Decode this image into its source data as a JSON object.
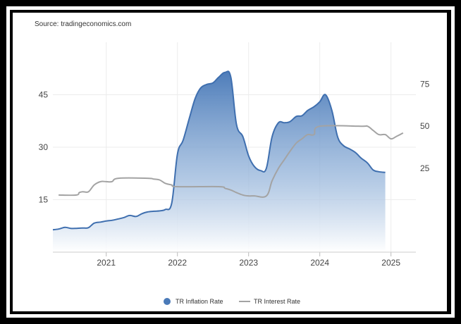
{
  "source_text": "Source: tradingeconomics.com",
  "chart_data": {
    "type": "area",
    "x_ticks": [
      "2021",
      "2022",
      "2023",
      "2024",
      "2025"
    ],
    "xlim": [
      2020.25,
      2025.35
    ],
    "y_left": {
      "ticks": [
        "15",
        "30",
        "45"
      ],
      "tick_values": [
        15,
        30,
        45
      ],
      "ylim": [
        0,
        60
      ]
    },
    "y_right": {
      "ticks": [
        "25",
        "50",
        "75"
      ],
      "tick_values": [
        25,
        50,
        75
      ],
      "ylim": [
        -25,
        100
      ]
    },
    "grid": true,
    "legend_position": "bottom-center",
    "series": [
      {
        "name": "TR Inflation Rate",
        "axis": "left",
        "style": "area",
        "color": "#4a7ab8",
        "points": [
          [
            2020.25,
            6.4
          ],
          [
            2020.33,
            6.6
          ],
          [
            2020.42,
            7.1
          ],
          [
            2020.5,
            6.8
          ],
          [
            2020.58,
            6.8
          ],
          [
            2020.67,
            6.9
          ],
          [
            2020.75,
            7.0
          ],
          [
            2020.83,
            8.3
          ],
          [
            2020.92,
            8.6
          ],
          [
            2021.0,
            8.9
          ],
          [
            2021.08,
            9.1
          ],
          [
            2021.17,
            9.5
          ],
          [
            2021.25,
            9.9
          ],
          [
            2021.33,
            10.5
          ],
          [
            2021.42,
            10.2
          ],
          [
            2021.5,
            11.0
          ],
          [
            2021.58,
            11.5
          ],
          [
            2021.67,
            11.7
          ],
          [
            2021.75,
            11.8
          ],
          [
            2021.83,
            12.2
          ],
          [
            2021.92,
            14.0
          ],
          [
            2022.0,
            28.0
          ],
          [
            2022.08,
            32.0
          ],
          [
            2022.17,
            38.5
          ],
          [
            2022.25,
            44.0
          ],
          [
            2022.33,
            47.0
          ],
          [
            2022.42,
            48.0
          ],
          [
            2022.5,
            48.4
          ],
          [
            2022.58,
            50.0
          ],
          [
            2022.67,
            51.4
          ],
          [
            2022.75,
            50.0
          ],
          [
            2022.83,
            36.5
          ],
          [
            2022.92,
            33.0
          ],
          [
            2023.0,
            27.5
          ],
          [
            2023.08,
            24.5
          ],
          [
            2023.17,
            23.3
          ],
          [
            2023.25,
            24.0
          ],
          [
            2023.33,
            33.0
          ],
          [
            2023.42,
            37.0
          ],
          [
            2023.5,
            37.0
          ],
          [
            2023.58,
            37.3
          ],
          [
            2023.67,
            38.8
          ],
          [
            2023.75,
            39.0
          ],
          [
            2023.83,
            40.5
          ],
          [
            2023.92,
            41.6
          ],
          [
            2024.0,
            43.0
          ],
          [
            2024.08,
            45.0
          ],
          [
            2024.17,
            40.5
          ],
          [
            2024.25,
            33.0
          ],
          [
            2024.33,
            30.5
          ],
          [
            2024.42,
            29.5
          ],
          [
            2024.5,
            28.5
          ],
          [
            2024.58,
            26.9
          ],
          [
            2024.67,
            25.5
          ],
          [
            2024.75,
            23.5
          ],
          [
            2024.83,
            23.0
          ],
          [
            2024.92,
            22.8
          ]
        ]
      },
      {
        "name": "TR Interest Rate",
        "axis": "right",
        "style": "line",
        "color": "#a3a3a3",
        "points": [
          [
            2020.33,
            9.0
          ],
          [
            2020.58,
            9.0
          ],
          [
            2020.62,
            10.5
          ],
          [
            2020.67,
            11.0
          ],
          [
            2020.75,
            11.0
          ],
          [
            2020.83,
            15.0
          ],
          [
            2020.92,
            17.0
          ],
          [
            2021.0,
            17.0
          ],
          [
            2021.08,
            17.0
          ],
          [
            2021.17,
            19.0
          ],
          [
            2021.58,
            19.0
          ],
          [
            2021.67,
            18.5
          ],
          [
            2021.75,
            18.0
          ],
          [
            2021.83,
            16.0
          ],
          [
            2021.92,
            15.0
          ],
          [
            2022.0,
            14.0
          ],
          [
            2022.58,
            14.0
          ],
          [
            2022.67,
            13.0
          ],
          [
            2022.75,
            12.0
          ],
          [
            2022.83,
            10.5
          ],
          [
            2022.92,
            9.0
          ],
          [
            2023.0,
            8.5
          ],
          [
            2023.08,
            8.5
          ],
          [
            2023.25,
            8.5
          ],
          [
            2023.33,
            17.5
          ],
          [
            2023.42,
            25.0
          ],
          [
            2023.5,
            30.0
          ],
          [
            2023.58,
            35.0
          ],
          [
            2023.67,
            40.0
          ],
          [
            2023.75,
            42.5
          ],
          [
            2023.83,
            45.0
          ],
          [
            2023.92,
            45.0
          ],
          [
            2024.0,
            50.0
          ],
          [
            2024.58,
            50.0
          ],
          [
            2024.67,
            50.0
          ],
          [
            2024.75,
            47.5
          ],
          [
            2024.83,
            45.0
          ],
          [
            2024.92,
            45.0
          ],
          [
            2025.0,
            42.5
          ],
          [
            2025.08,
            44.0
          ],
          [
            2025.17,
            46.0
          ]
        ]
      }
    ]
  }
}
